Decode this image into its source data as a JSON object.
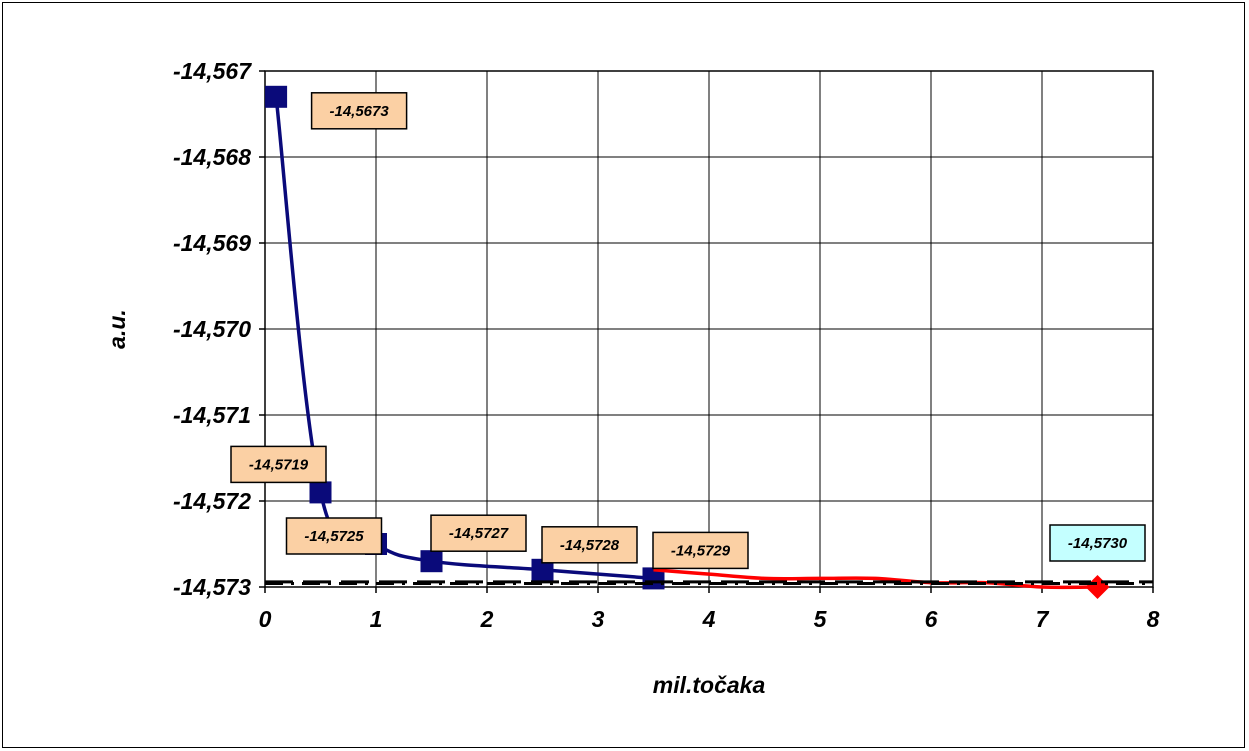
{
  "chart_data": {
    "type": "line",
    "xlabel": "mil.točaka",
    "ylabel": "a.u.",
    "xlim": [
      0,
      8
    ],
    "ylim": [
      -14.573,
      -14.567
    ],
    "grid": true,
    "x_ticks": [
      "0",
      "1",
      "2",
      "3",
      "4",
      "5",
      "6",
      "7",
      "8"
    ],
    "y_ticks": [
      "-14,567",
      "-14,568",
      "-14,569",
      "-14,570",
      "-14,571",
      "-14,572",
      "-14,573"
    ],
    "series": [
      {
        "color": "#0a0a7a",
        "marker": "square",
        "x": [
          0.1,
          0.5,
          1.0,
          1.5,
          2.5,
          3.5
        ],
        "y": [
          -14.5673,
          -14.5719,
          -14.5725,
          -14.5727,
          -14.5728,
          -14.5729
        ],
        "labels": [
          "-14,5673",
          "-14,5719",
          "-14,5725",
          "-14,5727",
          "-14,5728",
          "-14,5729"
        ],
        "label_bg": "#fbd0a4"
      },
      {
        "color": "#ff0000",
        "marker": "diamond",
        "x": [
          3.5,
          4.0,
          4.5,
          5.0,
          5.5,
          6.0,
          6.5,
          7.0,
          7.5
        ],
        "y": [
          -14.5728,
          -14.57285,
          -14.5729,
          -14.5729,
          -14.5729,
          -14.57295,
          -14.57295,
          -14.573,
          -14.573
        ],
        "labels": [
          "-14,5730"
        ],
        "label_bg": "#c4ffff"
      },
      {
        "color": "#000000",
        "style": "dash",
        "x": [
          0,
          8
        ],
        "y": [
          -14.57294,
          -14.57294
        ]
      },
      {
        "color": "#000000",
        "style": "dashdot",
        "x": [
          0,
          8
        ],
        "y": [
          -14.57296,
          -14.57296
        ]
      }
    ]
  }
}
